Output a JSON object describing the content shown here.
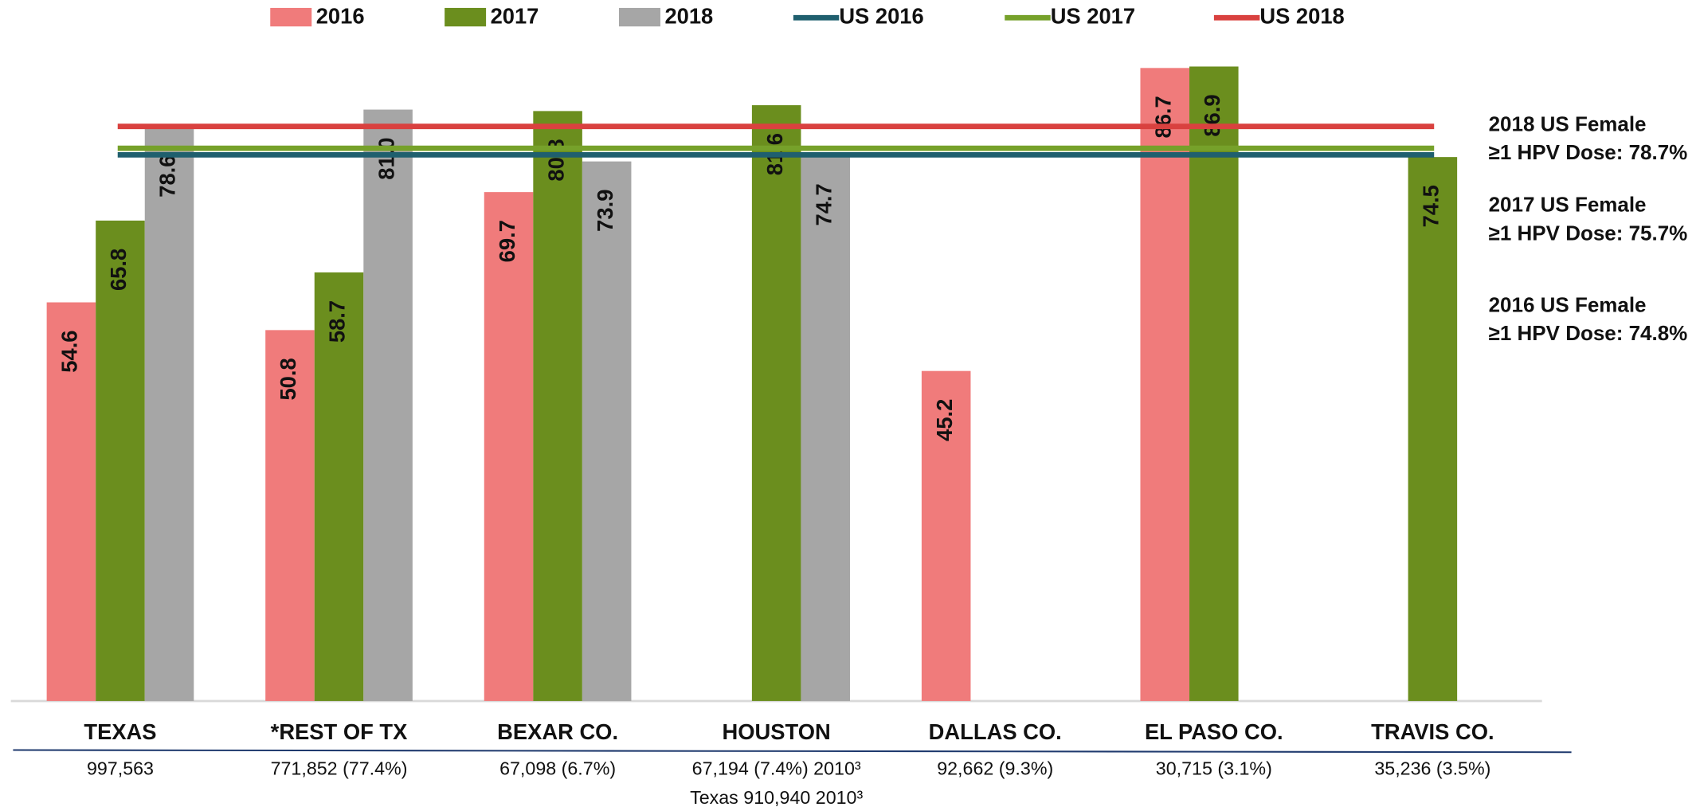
{
  "chart_data": {
    "type": "bar",
    "categories": [
      "TEXAS",
      "*REST OF TX",
      "BEXAR CO.",
      "HOUSTON",
      "DALLAS CO.",
      "EL PASO CO.",
      "TRAVIS CO."
    ],
    "category_notes": [
      [
        "997,563"
      ],
      [
        "771,852 (77.4%)"
      ],
      [
        "67,098 (6.7%)"
      ],
      [
        "67,194 (7.4%) 2010³",
        "Texas 910,940  2010³"
      ],
      [
        "92,662 (9.3%)"
      ],
      [
        "30,715 (3.1%)"
      ],
      [
        "35,236 (3.5%)"
      ]
    ],
    "series": [
      {
        "name": "2016",
        "color": "#f07b7b",
        "values": [
          54.6,
          50.8,
          69.7,
          null,
          45.2,
          86.7,
          null
        ],
        "value_labels": [
          "54.6",
          "50.8",
          "69.7",
          null,
          "45.2",
          "86.7",
          null
        ]
      },
      {
        "name": "2017",
        "color": "#6b8e1e",
        "values": [
          65.8,
          58.7,
          80.8,
          81.6,
          null,
          86.9,
          74.5
        ],
        "value_labels": [
          "65.8",
          "58.7",
          "80.8",
          "81.6",
          null,
          "86.9",
          "74.5"
        ]
      },
      {
        "name": "2018",
        "color": "#a6a6a6",
        "values": [
          78.6,
          81.0,
          73.9,
          74.7,
          null,
          null,
          null
        ],
        "value_labels": [
          "78.6",
          "81.0",
          "73.9",
          "74.7",
          null,
          null,
          null
        ]
      }
    ],
    "reference_lines": [
      {
        "name": "US 2016",
        "color": "#1f5f6e",
        "label_color": "#216470",
        "value": 74.8,
        "label": [
          "2016 US  Female",
          "≥1 HPV Dose: 74.8%"
        ]
      },
      {
        "name": "US 2017",
        "color": "#76a12a",
        "label_color": "#7aa22b",
        "value": 75.7,
        "label": [
          "2017 US  Female",
          "≥1 HPV Dose: 75.7%"
        ]
      },
      {
        "name": "US 2018",
        "color": "#d9413f",
        "label_color": "#d9413f",
        "value": 78.7,
        "label": [
          "2018 US  Female",
          "≥1 HPV Dose: 78.7%"
        ]
      }
    ],
    "ylim": [
      0,
      90
    ]
  }
}
